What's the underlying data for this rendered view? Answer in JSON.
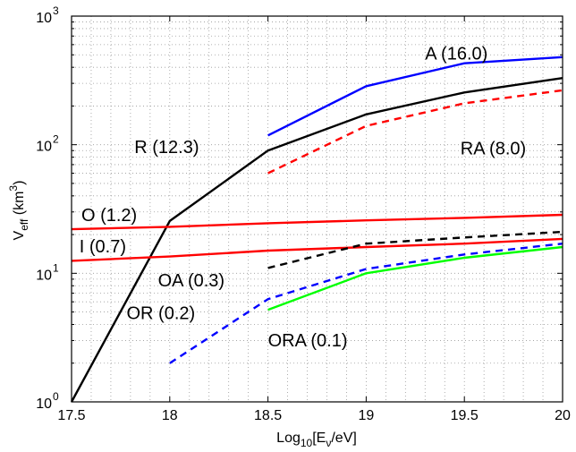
{
  "chart_data": {
    "type": "line",
    "title": "",
    "xlabel": {
      "base": "Log",
      "sub1": "10",
      "mid": "[E",
      "sub2": "ν",
      "end": "/eV]"
    },
    "ylabel": {
      "base": "V",
      "sub": "eff",
      "mid": " (km",
      "sup": "3",
      "end": ")"
    },
    "xlim": [
      17.5,
      20
    ],
    "ylim": [
      1,
      1000
    ],
    "y_scale": "log",
    "grid": true,
    "x_ticks": [
      {
        "value": 17.5,
        "label": "17.5"
      },
      {
        "value": 18,
        "label": "18"
      },
      {
        "value": 18.5,
        "label": "18.5"
      },
      {
        "value": 19,
        "label": "19"
      },
      {
        "value": 19.5,
        "label": "19.5"
      },
      {
        "value": 20,
        "label": "20"
      }
    ],
    "y_ticks": [
      {
        "value": 1,
        "base": "10",
        "exp": "0"
      },
      {
        "value": 10,
        "base": "10",
        "exp": "1"
      },
      {
        "value": 100,
        "base": "10",
        "exp": "2"
      },
      {
        "value": 1000,
        "base": "10",
        "exp": "3"
      }
    ],
    "series": [
      {
        "name": "A (16.0)",
        "color": "#0000ff",
        "dash": "solid",
        "x": [
          18.5,
          19.0,
          19.5,
          20.0
        ],
        "y": [
          118,
          285,
          430,
          480
        ],
        "label_at": {
          "x": 19.3,
          "y": 460
        }
      },
      {
        "name": "R (12.3)",
        "color": "#000000",
        "dash": "solid",
        "x": [
          17.5,
          18.0,
          18.5,
          19.0,
          19.5,
          20.0
        ],
        "y": [
          1.0,
          25.5,
          90,
          172,
          255,
          330
        ],
        "label_at": {
          "x": 17.82,
          "y": 86
        }
      },
      {
        "name": "RA (8.0)",
        "color": "#ff0000",
        "dash": "dashed",
        "x": [
          18.5,
          19.0,
          19.5,
          20.0
        ],
        "y": [
          60,
          140,
          210,
          265
        ],
        "label_at": {
          "x": 19.48,
          "y": 84
        }
      },
      {
        "name": "O (1.2)",
        "color": "#ff0000",
        "dash": "solid",
        "x": [
          17.5,
          18.0,
          18.5,
          19.0,
          19.5,
          20.0
        ],
        "y": [
          22,
          23,
          24.5,
          25.8,
          27,
          28.5
        ],
        "label_at": {
          "x": 17.55,
          "y": 25.5
        }
      },
      {
        "name": "I (0.7)",
        "color": "#ff0000",
        "dash": "solid",
        "x": [
          17.5,
          18.0,
          18.5,
          19.0,
          19.5,
          20.0
        ],
        "y": [
          12.5,
          13.5,
          15.0,
          16.0,
          17.0,
          18.5
        ],
        "label_at": {
          "x": 17.54,
          "y": 14.5
        }
      },
      {
        "name": "OA (0.3)",
        "color": "#000000",
        "dash": "dashed",
        "x": [
          18.5,
          19.0,
          19.5,
          20.0
        ],
        "y": [
          11,
          17,
          19,
          21
        ],
        "label_at": {
          "x": 17.94,
          "y": 7.9
        }
      },
      {
        "name": "OR (0.2)",
        "color": "#0000ff",
        "dash": "dashed",
        "x": [
          18.0,
          18.5,
          19.0,
          19.5,
          20.0
        ],
        "y": [
          2.0,
          6.3,
          10.8,
          14.0,
          17.0
        ],
        "label_at": {
          "x": 17.78,
          "y": 4.4
        }
      },
      {
        "name": "ORA (0.1)",
        "color": "#00ff00",
        "dash": "solid",
        "x": [
          18.5,
          19.0,
          19.5,
          20.0
        ],
        "y": [
          5.2,
          10.0,
          13.2,
          16.0
        ],
        "label_at": {
          "x": 18.5,
          "y": 2.7
        }
      }
    ]
  }
}
